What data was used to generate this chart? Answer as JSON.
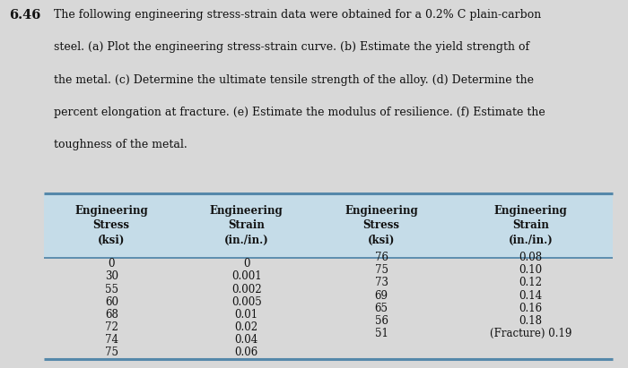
{
  "problem_number": "6.46",
  "problem_text_line1": "The following engineering stress-strain data were obtained for a 0.2% C plain-carbon",
  "problem_text_line2": "steel. (a) Plot the engineering stress-strain curve. (b) Estimate the yield strength of",
  "problem_text_line3": "the metal. (c) Determine the ultimate tensile strength of the alloy. (d) Determine the",
  "problem_text_line4": "percent elongation at fracture. (e) Estimate the modulus of resilience. (f) Estimate the",
  "problem_text_line5": "toughness of the metal.",
  "col1_header": "Engineering\nStress\n(ksi)",
  "col2_header": "Engineering\nStrain\n(in./in.)",
  "col3_header": "Engineering\nStress\n(ksi)",
  "col4_header": "Engineering\nStrain\n(in./in.)",
  "col1_data": [
    "0",
    "30",
    "55",
    "60",
    "68",
    "72",
    "74",
    "75"
  ],
  "col2_data": [
    "0",
    "0.001",
    "0.002",
    "0.005",
    "0.01",
    "0.02",
    "0.04",
    "0.06"
  ],
  "col3_data": [
    "76",
    "75",
    "73",
    "69",
    "65",
    "56",
    "51"
  ],
  "col4_data": [
    "0.08",
    "0.10",
    "0.12",
    "0.14",
    "0.16",
    "0.18",
    "(Fracture) 0.19"
  ],
  "bg_color": "#d8d8d8",
  "table_header_bg": "#c5dce8",
  "table_line_color": "#5588aa",
  "text_color": "#111111",
  "header_fontsize": 8.5,
  "data_fontsize": 8.5,
  "problem_fontsize": 9.0,
  "problem_num_fontsize": 10.5
}
